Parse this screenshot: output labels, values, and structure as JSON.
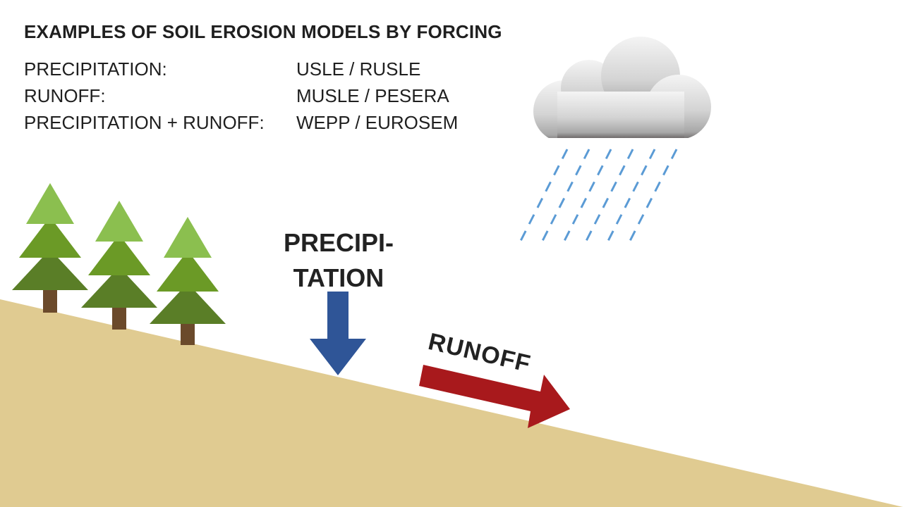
{
  "title": "EXAMPLES OF SOIL EROSION MODELS BY FORCING",
  "models": [
    {
      "forcing": "PRECIPITATION:",
      "models": "USLE / RUSLE"
    },
    {
      "forcing": "RUNOFF:",
      "models": "MUSLE / PESERA"
    },
    {
      "forcing": "PRECIPITATION + RUNOFF:",
      "models": "WEPP / EUROSEM"
    }
  ],
  "diagram": {
    "precipitation_label_line1": "PRECIPI-",
    "precipitation_label_line2": "TATION",
    "runoff_label": "RUNOFF"
  },
  "colors": {
    "soil": "#e0cb91",
    "tree_light": "#8bbf4f",
    "tree_mid": "#6b9a26",
    "tree_dark": "#5a7e27",
    "trunk": "#6b4a2b",
    "precip_arrow": "#2f5597",
    "runoff_arrow": "#a8191c",
    "rain": "#5b9bd5",
    "cloud_top": "#f2f2f2",
    "cloud_bottom": "#7a7a7a"
  }
}
